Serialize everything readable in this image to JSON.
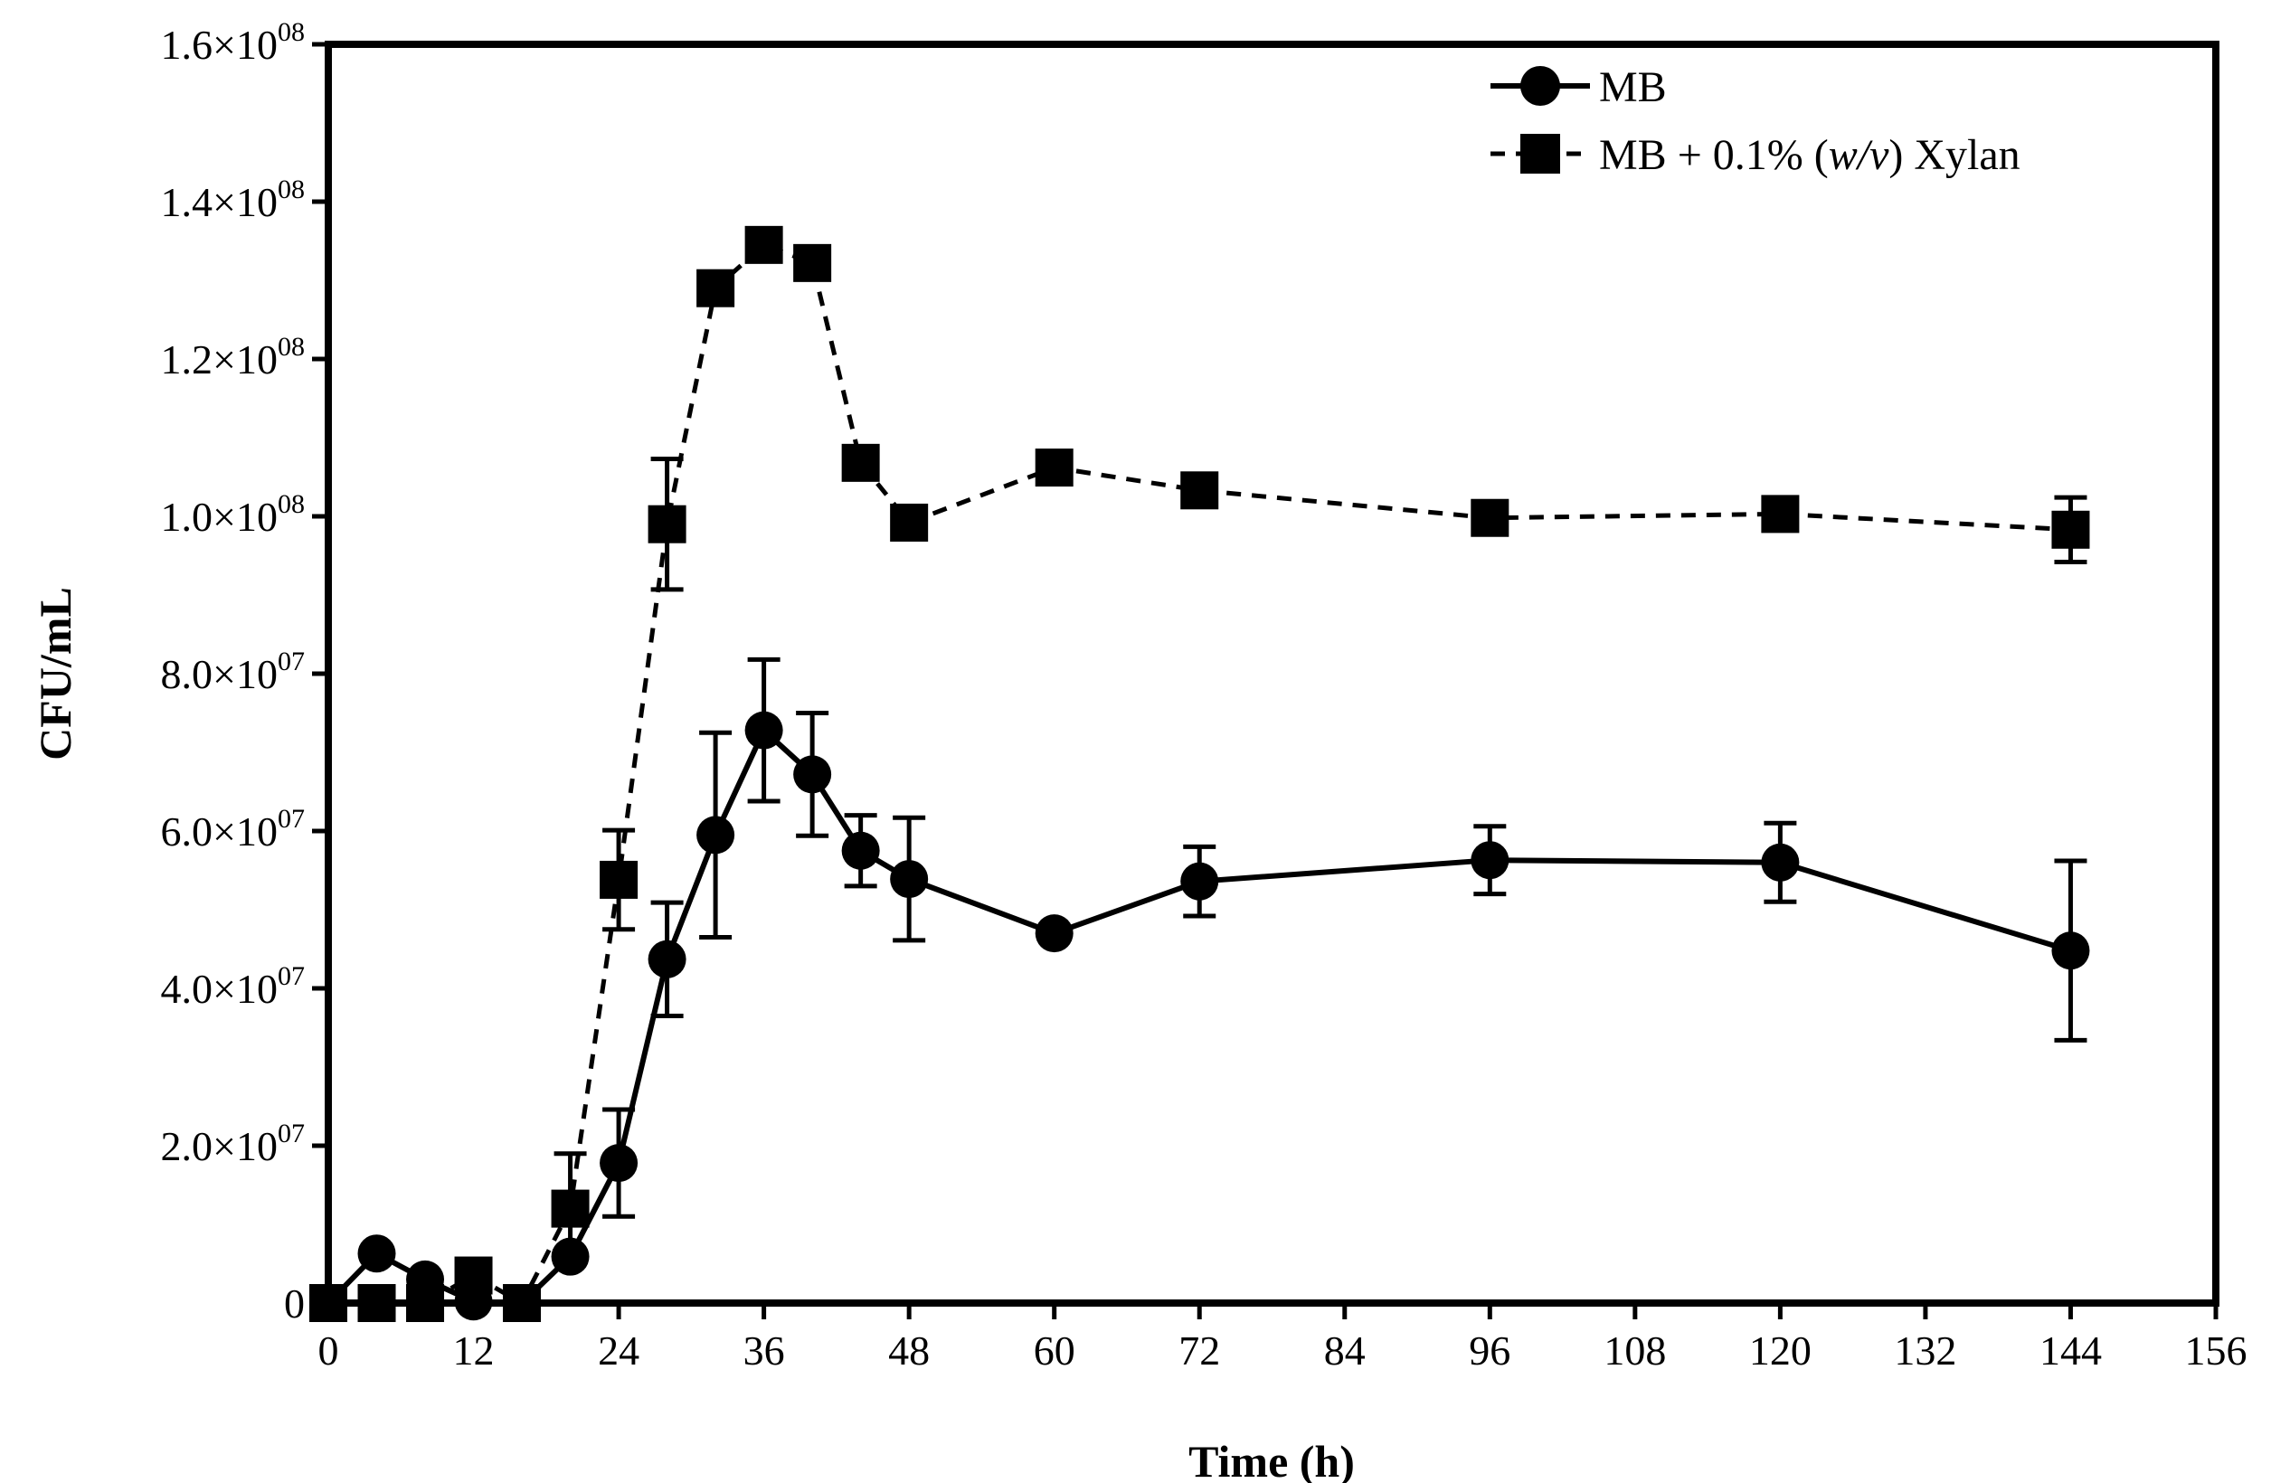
{
  "chart_data": {
    "type": "line",
    "title": "",
    "xlabel": "Time (h)",
    "ylabel": "CFU/mL",
    "xlim": [
      0,
      156
    ],
    "ylim": [
      0,
      160000000
    ],
    "x_ticks": [
      {
        "value": 0,
        "label": "0"
      },
      {
        "value": 12,
        "label": "12"
      },
      {
        "value": 24,
        "label": "24"
      },
      {
        "value": 36,
        "label": "36"
      },
      {
        "value": 48,
        "label": "48"
      },
      {
        "value": 60,
        "label": "60"
      },
      {
        "value": 72,
        "label": "72"
      },
      {
        "value": 84,
        "label": "84"
      },
      {
        "value": 96,
        "label": "96"
      },
      {
        "value": 108,
        "label": "108"
      },
      {
        "value": 120,
        "label": "120"
      },
      {
        "value": 132,
        "label": "132"
      },
      {
        "value": 144,
        "label": "144"
      },
      {
        "value": 156,
        "label": "156"
      }
    ],
    "y_ticks": [
      {
        "value": 0,
        "mantissa": "0",
        "exponent": ""
      },
      {
        "value": 20000000,
        "mantissa": "2.0×10",
        "exponent": "07"
      },
      {
        "value": 40000000,
        "mantissa": "4.0×10",
        "exponent": "07"
      },
      {
        "value": 60000000,
        "mantissa": "6.0×10",
        "exponent": "07"
      },
      {
        "value": 80000000,
        "mantissa": "8.0×10",
        "exponent": "07"
      },
      {
        "value": 100000000,
        "mantissa": "1.0×10",
        "exponent": "08"
      },
      {
        "value": 120000000,
        "mantissa": "1.2×10",
        "exponent": "08"
      },
      {
        "value": 140000000,
        "mantissa": "1.4×10",
        "exponent": "08"
      },
      {
        "value": 160000000,
        "mantissa": "1.6×10",
        "exponent": "08"
      }
    ],
    "legend_position": "top-right",
    "series": [
      {
        "name": "MB",
        "marker": "circle",
        "line_style": "solid",
        "x": [
          0,
          4,
          8,
          12,
          16,
          20,
          24,
          28,
          32,
          36,
          40,
          44,
          48,
          60,
          72,
          96,
          120,
          144
        ],
        "y": [
          0,
          6300000,
          3000000,
          200000,
          0,
          5900000,
          17800000,
          43700000,
          59500000,
          72800000,
          67200000,
          57500000,
          53900000,
          47000000,
          53600000,
          56300000,
          56000000,
          44800000
        ],
        "err": [
          0,
          0,
          0,
          0,
          0,
          0,
          6800000,
          7200000,
          13000000,
          9000000,
          7800000,
          4500000,
          7800000,
          0,
          4400000,
          4300000,
          5000000,
          11400000
        ]
      },
      {
        "name": "MB + 0.1% (w/v) Xylan",
        "marker": "square",
        "line_style": "dashed",
        "x": [
          0,
          4,
          8,
          12,
          16,
          20,
          24,
          28,
          32,
          36,
          40,
          44,
          48,
          60,
          72,
          96,
          120,
          144
        ],
        "y": [
          0,
          0,
          0,
          3500000,
          0,
          12000000,
          53800000,
          99000000,
          129000000,
          134500000,
          132200000,
          106800000,
          99200000,
          106200000,
          103300000,
          99800000,
          100300000,
          98300000
        ],
        "err": [
          0,
          0,
          0,
          0,
          0,
          7000000,
          6300000,
          8300000,
          0,
          0,
          0,
          0,
          0,
          0,
          0,
          0,
          0,
          4100000
        ]
      }
    ]
  },
  "legend": {
    "mb_label": "MB",
    "xylan_prefix": "MB + 0.1% (",
    "xylan_italic": "w/v",
    "xylan_suffix": ") Xylan"
  }
}
